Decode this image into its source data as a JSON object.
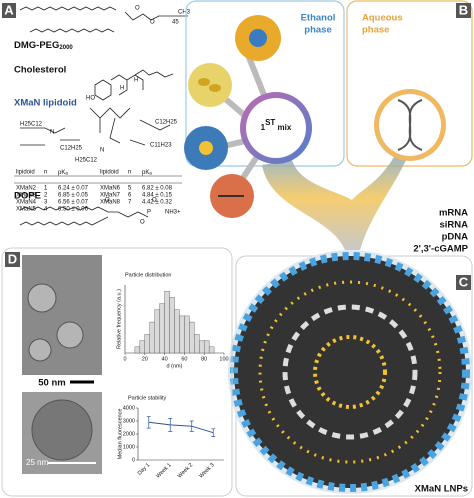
{
  "panel_a": {
    "label": "A",
    "dmg_peg": {
      "name": "DMG-PEG",
      "sub": "2000"
    },
    "cholesterol": "Cholesterol",
    "xman": "XMaN lipidoid",
    "dope": "DOPE",
    "atoms": [
      "O",
      "O",
      "45",
      "CH3",
      "HO",
      "H",
      "H",
      "H25C12",
      "C12H25",
      "C12H25",
      "H25C12",
      "N",
      "N",
      "C11H23",
      "O",
      "O",
      "P",
      "O",
      "NH3+"
    ],
    "table": {
      "header": [
        "lipidoid",
        "n"
      ],
      "pka": {
        "text": "pK",
        "sub": "a"
      },
      "rows": [
        [
          "XMaN2",
          "1",
          "6.24 ± 0.07",
          "XMaN6",
          "5",
          "6.82 ± 0.08"
        ],
        [
          "XMaN3",
          "2",
          "6.85 ± 0.05",
          "XMaN7",
          "6",
          "4.84 ± 0.15"
        ],
        [
          "XMaN4",
          "3",
          "6.56 ± 0.07",
          "XMaN8",
          "7",
          "4.42 ± 0.32"
        ],
        [
          "XMaN5",
          "4",
          "6.50 ± 0.06"
        ]
      ]
    }
  },
  "panel_b": {
    "label": "B",
    "ethanol": [
      "Ethanol",
      "phase"
    ],
    "aqueous": [
      "Aqueous",
      "phase"
    ],
    "mix": {
      "num": "1",
      "sup": "ST",
      "rest": " mix"
    },
    "cargo": [
      "mRNA",
      "siRNA",
      "pDNA",
      "2',3'-cGAMP"
    ]
  },
  "panel_c": {
    "label": "C",
    "caption": "XMaN LNPs"
  },
  "panel_d": {
    "label": "D",
    "scale_bars": [
      "50 nm",
      "25 nm"
    ]
  },
  "chart_data": [
    {
      "type": "histogram",
      "title": "Particle distribution",
      "x_label": "d (nm)",
      "y_label": "Relative frequency (a.u.)",
      "bins": [
        10,
        15,
        20,
        25,
        30,
        35,
        40,
        45,
        50,
        55,
        60,
        65,
        70,
        75,
        80,
        85,
        90
      ],
      "values": [
        1,
        2,
        3,
        5,
        7,
        8,
        10,
        9,
        7,
        6,
        6,
        5,
        3,
        2,
        2,
        1
      ],
      "xlim": [
        0,
        100
      ],
      "xticks": [
        0,
        20,
        40,
        60,
        80,
        100
      ],
      "ylim": [
        0,
        11
      ],
      "color": "#d9d9d9"
    },
    {
      "type": "line",
      "title": "Particle stability",
      "y_label": "Median fluorescence",
      "categories": [
        "Day 1",
        "Week 1",
        "Week 2",
        "Week 3"
      ],
      "values": [
        2900,
        2700,
        2600,
        2100
      ],
      "errors": [
        450,
        500,
        400,
        300
      ],
      "ylim": [
        0,
        4000
      ],
      "yticks": [
        0,
        1000,
        2000,
        3000,
        4000
      ],
      "color": "#2f5597"
    }
  ]
}
